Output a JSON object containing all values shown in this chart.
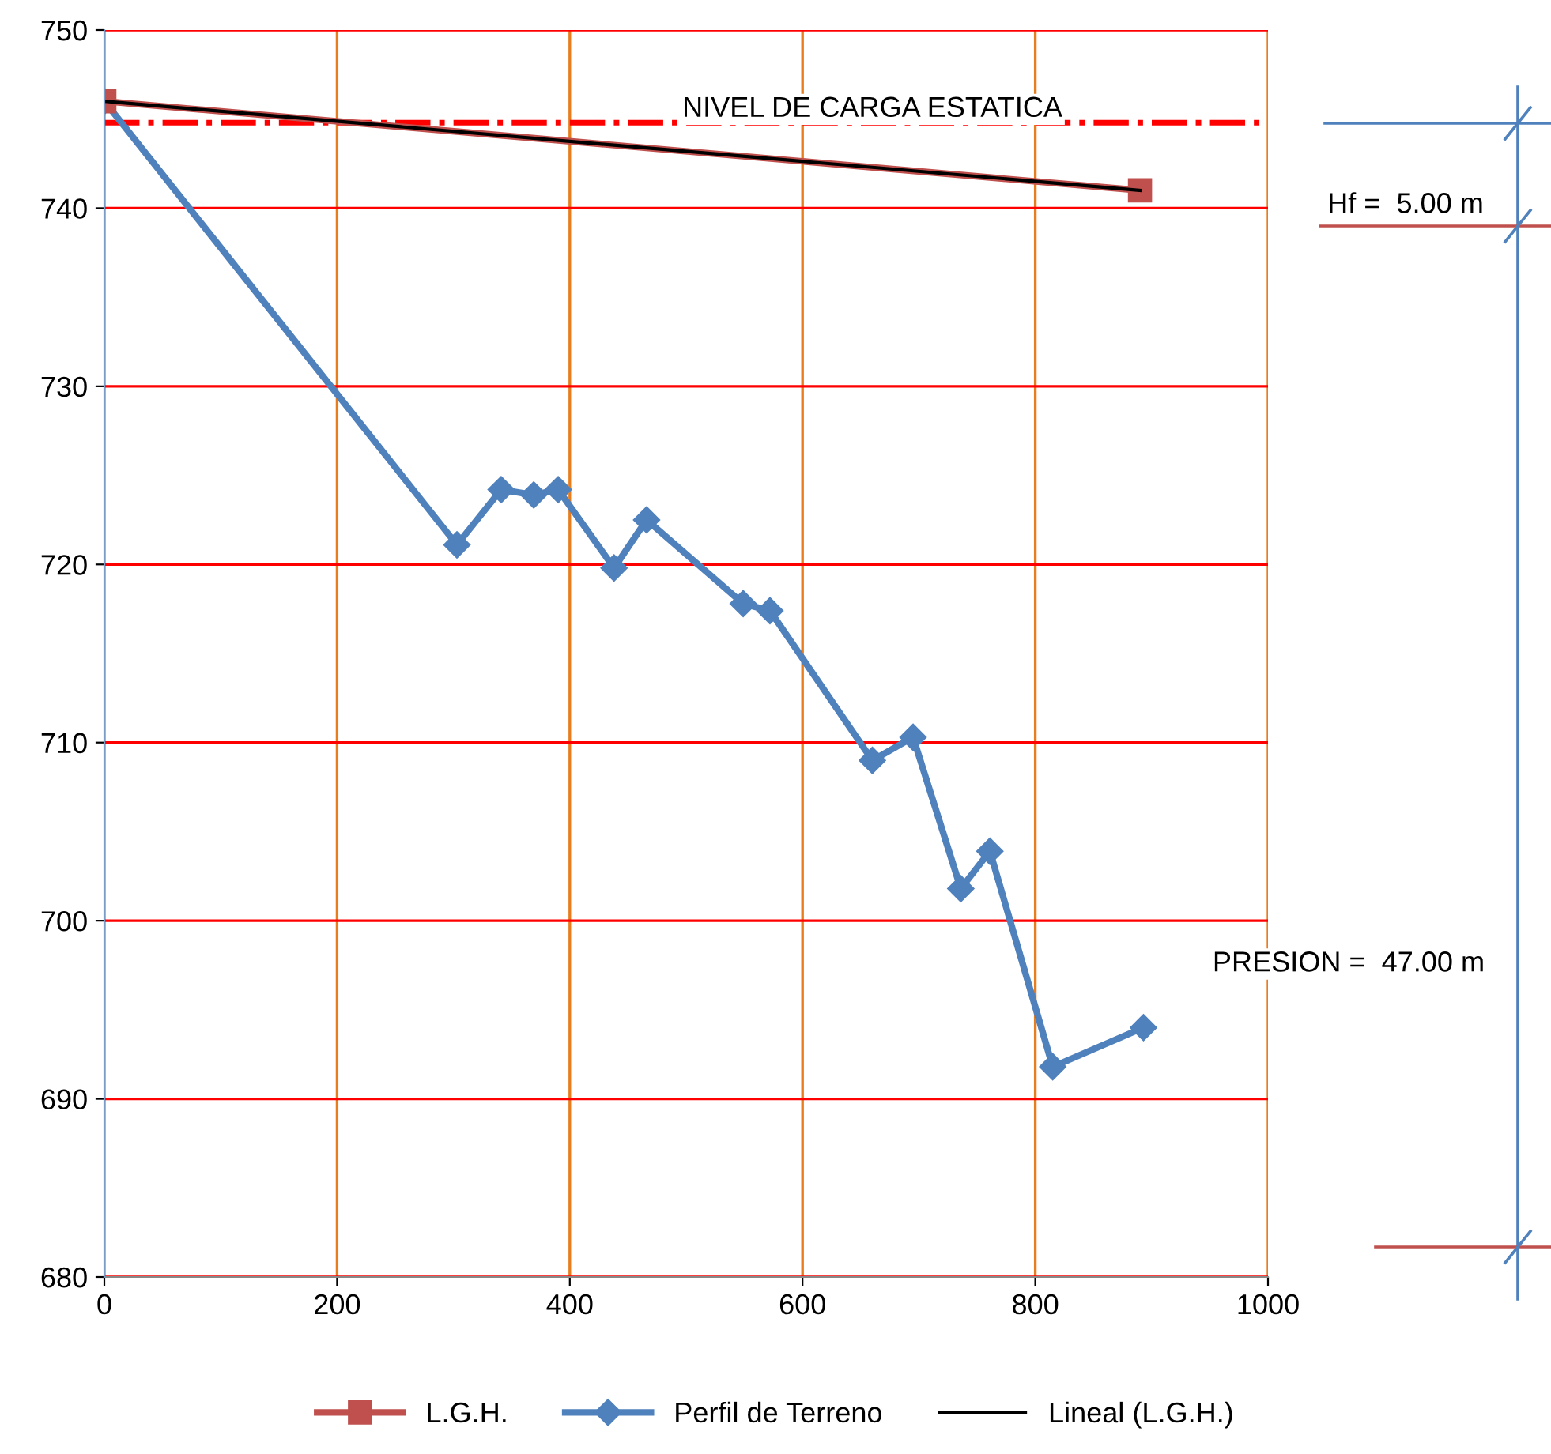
{
  "chart_data": {
    "type": "line",
    "xlim": [
      0,
      1000
    ],
    "ylim": [
      680,
      750
    ],
    "xticks": [
      0,
      200,
      400,
      600,
      800,
      1000
    ],
    "yticks": [
      680,
      690,
      700,
      710,
      720,
      730,
      740,
      750
    ],
    "grid": true,
    "legend": "bottom",
    "series": [
      {
        "name": "L.G.H.",
        "color": "#c0504d",
        "marker": "square",
        "x": [
          0,
          890
        ],
        "values": [
          746.0,
          741.0
        ]
      },
      {
        "name": "Perfil de Terreno",
        "color": "#4f81bd",
        "marker": "diamond",
        "x": [
          0,
          303,
          341,
          369,
          390,
          438,
          466,
          549,
          572,
          660,
          695,
          736,
          761,
          815,
          893
        ],
        "values": [
          746.0,
          721.1,
          724.2,
          723.9,
          724.2,
          719.8,
          722.5,
          717.8,
          717.4,
          709.0,
          710.3,
          701.8,
          703.9,
          691.8,
          694.0
        ]
      },
      {
        "name": "Lineal (L.G.H.)",
        "color": "#000000",
        "marker": "none",
        "x": [
          0,
          890
        ],
        "values": [
          746.0,
          741.0
        ]
      }
    ],
    "ref_lines": [
      {
        "axis": "y",
        "value": 744.8,
        "label": "NIVEL DE CARGA ESTATICA",
        "color": "#ff0000",
        "line_style": "dashdot"
      }
    ],
    "annotations": [
      "Hf =  5.00 m",
      "PRESION =  47.00 m"
    ]
  }
}
